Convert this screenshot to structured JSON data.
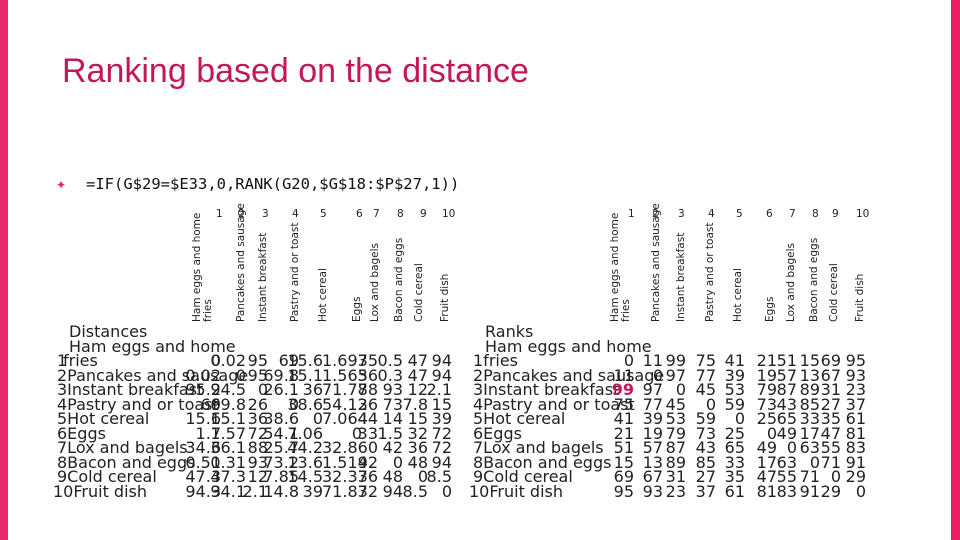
{
  "title": "Ranking based on the distance",
  "formula": "=IF(G$29=$E33,0,RANK(G20,$G$18:$P$27,1))",
  "colors": {
    "accent": "#e91e63",
    "title": "#c2185b"
  },
  "items": [
    "Ham eggs and home fries",
    "Pancakes and sausage",
    "Instant breakfast",
    "Pastry and or toast",
    "Hot cereal",
    "Eggs",
    "Lox and bagels",
    "Bacon and eggs",
    "Cold cereal",
    "Fruit dish"
  ],
  "column_numbers": [
    "1",
    "2",
    "3",
    "4",
    "5",
    "6",
    "7",
    "8",
    "9",
    "10"
  ],
  "distances": {
    "header": "Distances",
    "row_labels": [
      "1",
      "2Pancakes and sausage",
      "3Instant breakfast",
      "4Pastry and or toast",
      "5Hot cereal",
      "6Eggs",
      "7Lox and bagels",
      "8Bacon and eggs",
      "9Cold cereal",
      "10Fruit dish"
    ],
    "first_row_title": "Ham eggs and home",
    "first_row_suffix": "fries",
    "rows": [
      [
        "0",
        "0.02",
        "95",
        "69",
        "15.6",
        "1.697",
        "35",
        "0.5",
        "47",
        "94"
      ],
      [
        "0.02",
        "0",
        "95",
        "69.8",
        "15.1",
        "1.565",
        "36",
        "0.3",
        "47",
        "94"
      ],
      [
        "95.2",
        "94.5",
        "0",
        "26.1",
        "36",
        "71.77",
        "88",
        "93",
        "12",
        "2.1"
      ],
      [
        "69",
        "69.8",
        "26",
        "0",
        "38.6",
        "54.13",
        "26",
        "73",
        "7.8",
        "15"
      ],
      [
        "15.6",
        "15.1",
        "36",
        "38.6",
        "0",
        "7.064",
        "44",
        "14",
        "15",
        "39"
      ],
      [
        "1.7",
        "1.57",
        "72",
        "54.1",
        "7.06",
        "0",
        "33",
        "1.5",
        "32",
        "72"
      ],
      [
        "34.6",
        "36.1",
        "88",
        "25.7",
        "44.2",
        "32.86",
        "0",
        "42",
        "36",
        "72"
      ],
      [
        "0.51",
        "0.31",
        "93",
        "73.2",
        "13.6",
        "1.519",
        "42",
        "0",
        "48",
        "94"
      ],
      [
        "47.3",
        "47.3",
        "12",
        "7.85",
        "14.5",
        "32.37",
        "36",
        "48",
        "0",
        "8.5"
      ],
      [
        "94.3",
        "94.1",
        "2.1",
        "14.8",
        "39",
        "71.83",
        "72",
        "94",
        "8.5",
        "0"
      ]
    ]
  },
  "ranks": {
    "header": "Ranks",
    "first_row_title": "Ham eggs and home",
    "row_labels": [
      "1fries",
      "2Pancakes and sausage",
      "3Instant breakfast",
      "4Pastry and or toast",
      "5Hot cereal",
      "6Eggs",
      "7Lox and bagels",
      "8Bacon and eggs",
      "9Cold cereal",
      "10Fruit dish"
    ],
    "rows": [
      [
        "0",
        "11",
        "99",
        "75",
        "41",
        "21",
        "51",
        "15",
        "69",
        "95"
      ],
      [
        "11",
        "0",
        "97",
        "77",
        "39",
        "19",
        "57",
        "13",
        "67",
        "93"
      ],
      [
        "99",
        "97",
        "0",
        "45",
        "53",
        "79",
        "87",
        "89",
        "31",
        "23"
      ],
      [
        "75",
        "77",
        "45",
        "0",
        "59",
        "73",
        "43",
        "85",
        "27",
        "37"
      ],
      [
        "41",
        "39",
        "53",
        "59",
        "0",
        "25",
        "65",
        "33",
        "35",
        "61"
      ],
      [
        "21",
        "19",
        "79",
        "73",
        "25",
        "0",
        "49",
        "17",
        "47",
        "81"
      ],
      [
        "51",
        "57",
        "87",
        "43",
        "65",
        "49",
        "0",
        "63",
        "55",
        "83"
      ],
      [
        "15",
        "13",
        "89",
        "85",
        "33",
        "17",
        "63",
        "0",
        "71",
        "91"
      ],
      [
        "69",
        "67",
        "31",
        "27",
        "35",
        "47",
        "55",
        "71",
        "0",
        "29"
      ],
      [
        "95",
        "93",
        "23",
        "37",
        "61",
        "81",
        "83",
        "91",
        "29",
        "0"
      ]
    ]
  }
}
